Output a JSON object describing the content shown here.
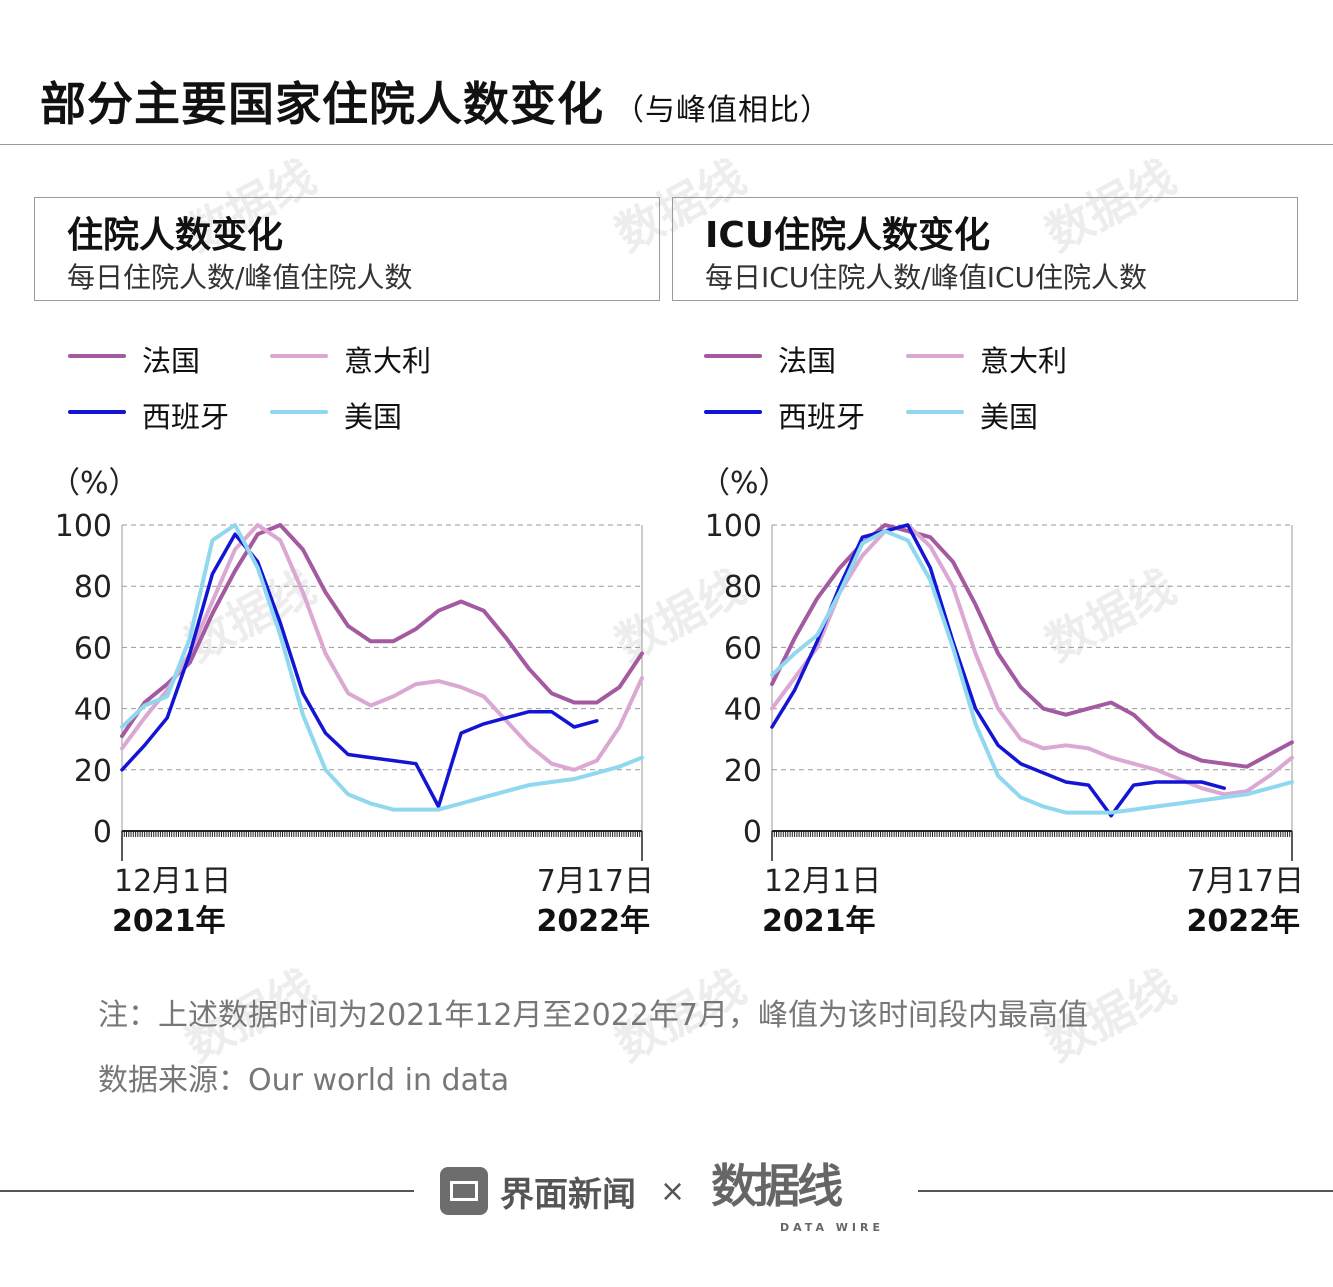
{
  "header": {
    "title": "部分主要国家住院人数变化",
    "subtitle": "（与峰值相比）"
  },
  "colors": {
    "france": "#a45aa0",
    "italy": "#dba8d4",
    "spain": "#1414d4",
    "usa": "#8fd8ef",
    "grid": "#9a9a9a"
  },
  "legend": [
    {
      "label": "法国",
      "color": "#a45aa0"
    },
    {
      "label": "意大利",
      "color": "#dba8d4"
    },
    {
      "label": "西班牙",
      "color": "#1414d4"
    },
    {
      "label": "美国",
      "color": "#8fd8ef"
    }
  ],
  "chart_data": [
    {
      "type": "line",
      "title": "住院人数变化",
      "subtitle": "每日住院人数/峰值住院人数",
      "ylabel": "（%）",
      "ylim": [
        0,
        100
      ],
      "yticks": [
        0,
        20,
        40,
        60,
        80,
        100
      ],
      "x_start_label": "12月1日",
      "x_start_year": "2021年",
      "x_end_label": "7月17日",
      "x_end_year": "2022年",
      "x": [
        0,
        10,
        20,
        30,
        40,
        50,
        60,
        70,
        80,
        90,
        100,
        110,
        120,
        130,
        140,
        150,
        160,
        170,
        180,
        190,
        200,
        210,
        220,
        230
      ],
      "series": [
        {
          "name": "法国",
          "values": [
            31,
            42,
            48,
            55,
            71,
            85,
            97,
            100,
            92,
            78,
            67,
            62,
            62,
            66,
            72,
            75,
            72,
            63,
            53,
            45,
            42,
            42,
            47,
            58
          ]
        },
        {
          "name": "意大利",
          "values": [
            27,
            37,
            46,
            58,
            75,
            92,
            100,
            95,
            78,
            58,
            45,
            41,
            44,
            48,
            49,
            47,
            44,
            36,
            28,
            22,
            20,
            23,
            34,
            50
          ]
        },
        {
          "name": "西班牙",
          "values": [
            20,
            28,
            37,
            58,
            84,
            97,
            88,
            68,
            45,
            32,
            25,
            24,
            23,
            22,
            8,
            32,
            35,
            37,
            39,
            39,
            34,
            36,
            null,
            null
          ]
        },
        {
          "name": "美国",
          "values": [
            34,
            41,
            44,
            63,
            95,
            100,
            86,
            64,
            38,
            20,
            12,
            9,
            7,
            7,
            7,
            9,
            11,
            13,
            15,
            16,
            17,
            19,
            21,
            24
          ]
        }
      ]
    },
    {
      "type": "line",
      "title": "ICU住院人数变化",
      "subtitle": "每日ICU住院人数/峰值ICU住院人数",
      "ylabel": "（%）",
      "ylim": [
        0,
        100
      ],
      "yticks": [
        0,
        20,
        40,
        60,
        80,
        100
      ],
      "x_start_label": "12月1日",
      "x_start_year": "2021年",
      "x_end_label": "7月17日",
      "x_end_year": "2022年",
      "x": [
        0,
        10,
        20,
        30,
        40,
        50,
        60,
        70,
        80,
        90,
        100,
        110,
        120,
        130,
        140,
        150,
        160,
        170,
        180,
        190,
        200,
        210,
        220,
        230
      ],
      "series": [
        {
          "name": "法国",
          "values": [
            48,
            63,
            76,
            86,
            94,
            100,
            98,
            96,
            88,
            74,
            58,
            47,
            40,
            38,
            40,
            42,
            38,
            31,
            26,
            23,
            22,
            21,
            25,
            29
          ]
        },
        {
          "name": "意大利",
          "values": [
            40,
            50,
            60,
            78,
            90,
            98,
            100,
            93,
            80,
            58,
            40,
            30,
            27,
            28,
            27,
            24,
            22,
            20,
            17,
            14,
            12,
            13,
            18,
            24
          ]
        },
        {
          "name": "西班牙",
          "values": [
            34,
            46,
            62,
            80,
            96,
            98,
            100,
            86,
            62,
            40,
            28,
            22,
            19,
            16,
            15,
            5,
            15,
            16,
            16,
            16,
            14,
            null,
            null,
            null
          ]
        },
        {
          "name": "美国",
          "values": [
            51,
            58,
            64,
            78,
            94,
            98,
            95,
            82,
            60,
            35,
            18,
            11,
            8,
            6,
            6,
            6,
            7,
            8,
            9,
            10,
            11,
            12,
            14,
            16
          ]
        }
      ]
    }
  ],
  "notes": {
    "note": "注：上述数据时间为2021年12月至2022年7月，峰值为该时间段内最高值",
    "source": "数据来源：Our world in data"
  },
  "footer": {
    "brand1": "界面新闻",
    "times": "×",
    "brand2": "数据线",
    "brand2_sub": "DATA WIRE"
  },
  "watermark": "数据线"
}
